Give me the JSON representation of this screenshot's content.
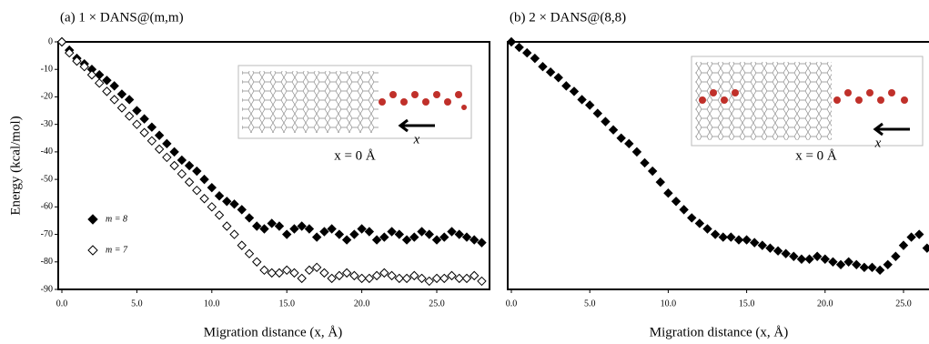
{
  "chart_data": [
    {
      "type": "scatter",
      "title": "(a) 1 × DANS@(m,m)",
      "xlabel": "Migration distance (x, Å)",
      "ylabel": "Energy (kcal/mol)",
      "annotation": "x = 0 Å",
      "arrow_label": "x",
      "legend": "lower left",
      "x": [
        0,
        0.5,
        1,
        1.5,
        2,
        2.5,
        3,
        3.5,
        4,
        4.5,
        5,
        5.5,
        6,
        6.5,
        7,
        7.5,
        8,
        8.5,
        9,
        9.5,
        10,
        10.5,
        11,
        11.5,
        12,
        12.5,
        13,
        13.5,
        14,
        14.5,
        15,
        15.5,
        16,
        16.5,
        17,
        17.5,
        18,
        18.5,
        19,
        19.5,
        20,
        20.5,
        21,
        21.5,
        22,
        22.5,
        23,
        23.5,
        24,
        24.5,
        25,
        25.5,
        26,
        26.5,
        27,
        27.5,
        28
      ],
      "series": [
        {
          "name": "m = 8",
          "color": "#000000",
          "marker": "filled",
          "values": [
            0,
            -3,
            -6,
            -8,
            -10,
            -12,
            -14,
            -16,
            -19,
            -21,
            -25,
            -28,
            -31,
            -34,
            -37,
            -40,
            -43,
            -45,
            -47,
            -50,
            -53,
            -56,
            -58,
            -59,
            -61,
            -64,
            -67,
            -68,
            -66,
            -67,
            -70,
            -68,
            -67,
            -68,
            -71,
            -69,
            -68,
            -70,
            -72,
            -70,
            -68,
            -69,
            -72,
            -71,
            -69,
            -70,
            -72,
            -71,
            -69,
            -70,
            -72,
            -71,
            -69,
            -70,
            -71,
            -72,
            -73
          ]
        },
        {
          "name": "m = 7",
          "color": "#000000",
          "marker": "open",
          "values": [
            0,
            -4,
            -7,
            -9,
            -12,
            -15,
            -18,
            -21,
            -24,
            -27,
            -30,
            -33,
            -36,
            -39,
            -42,
            -45,
            -48,
            -51,
            -54,
            -57,
            -60,
            -63,
            -67,
            -70,
            -74,
            -77,
            -80,
            -83,
            -84,
            -84,
            -83,
            -84,
            -86,
            -83,
            -82,
            -84,
            -86,
            -85,
            -84,
            -85,
            -86,
            -86,
            -85,
            -84,
            -85,
            -86,
            -86,
            -85,
            -86,
            -87,
            -86,
            -86,
            -85,
            -86,
            -86,
            -85,
            -87
          ]
        }
      ],
      "xlim": [
        0,
        28.5
      ],
      "ylim": [
        -90,
        0
      ],
      "xticks": [
        {
          "value": 0,
          "label": "0.0"
        },
        {
          "value": 5,
          "label": "5.0"
        },
        {
          "value": 10,
          "label": "10.0"
        },
        {
          "value": 15,
          "label": "15.0"
        },
        {
          "value": 20,
          "label": "20.0"
        },
        {
          "value": 25,
          "label": "25.0"
        }
      ],
      "yticks": [
        0,
        -10,
        -20,
        -30,
        -40,
        -50,
        -60,
        -70,
        -80,
        -90
      ]
    },
    {
      "type": "scatter",
      "title": "(b) 2 × DANS@(8,8)",
      "xlabel": "Migration distance (x, Å)",
      "annotation": "x = 0 Å",
      "arrow_label": "x",
      "x": [
        0,
        0.5,
        1,
        1.5,
        2,
        2.5,
        3,
        3.5,
        4,
        4.5,
        5,
        5.5,
        6,
        6.5,
        7,
        7.5,
        8,
        8.5,
        9,
        9.5,
        10,
        10.5,
        11,
        11.5,
        12,
        12.5,
        13,
        13.5,
        14,
        14.5,
        15,
        15.5,
        16,
        16.5,
        17,
        17.5,
        18,
        18.5,
        19,
        19.5,
        20,
        20.5,
        21,
        21.5,
        22,
        22.5,
        23,
        23.5,
        24,
        24.5,
        25,
        25.5,
        26,
        26.5
      ],
      "series": [
        {
          "color": "#000000",
          "marker": "filled",
          "values": [
            0,
            -2,
            -4,
            -6,
            -9,
            -11,
            -13,
            -16,
            -18,
            -21,
            -23,
            -26,
            -29,
            -32,
            -35,
            -37,
            -40,
            -44,
            -47,
            -51,
            -55,
            -58,
            -61,
            -64,
            -66,
            -68,
            -70,
            -71,
            -71,
            -72,
            -72,
            -73,
            -74,
            -75,
            -76,
            -77,
            -78,
            -79,
            -79,
            -78,
            -79,
            -80,
            -81,
            -80,
            -81,
            -82,
            -82,
            -83,
            -81,
            -78,
            -74,
            -71,
            -70,
            -75
          ]
        }
      ],
      "xlim": [
        0,
        26.7
      ],
      "ylim": [
        -90,
        0
      ],
      "xticks": [
        {
          "value": 0,
          "label": "0.0"
        },
        {
          "value": 5,
          "label": "5.0"
        },
        {
          "value": 10,
          "label": "10.0"
        },
        {
          "value": 15,
          "label": "15.0"
        },
        {
          "value": 20,
          "label": "20.0"
        },
        {
          "value": 25,
          "label": "25.0"
        }
      ]
    }
  ]
}
